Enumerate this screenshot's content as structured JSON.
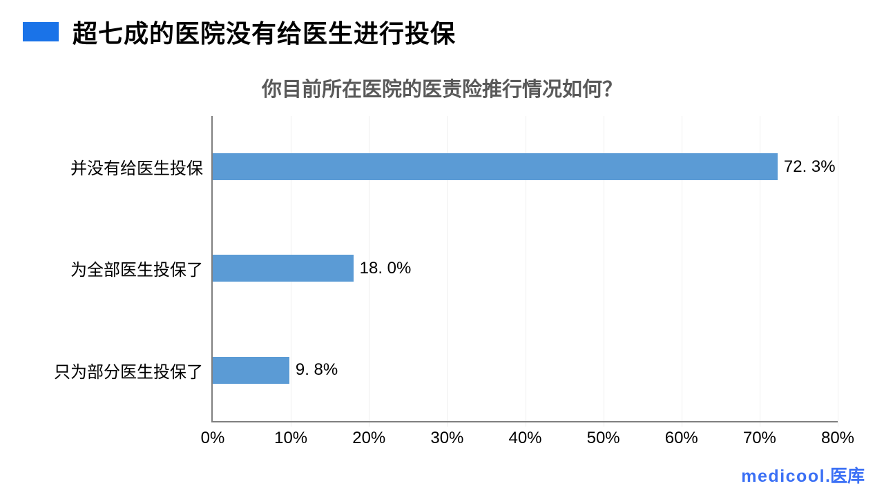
{
  "header": {
    "title": "超七成的医院没有给医生进行投保",
    "accent_color": "#1A73E8"
  },
  "chart_data": {
    "type": "bar",
    "orientation": "horizontal",
    "title": "你目前所在医院的医责险推行情况如何？",
    "categories": [
      "并没有给医生投保",
      "为全部医生投保了",
      "只为部分医生投保了"
    ],
    "values": [
      72.3,
      18.0,
      9.8
    ],
    "value_labels": [
      "72. 3%",
      "18. 0%",
      "9. 8%"
    ],
    "x_tick_labels": [
      "0%",
      "10%",
      "20%",
      "30%",
      "40%",
      "50%",
      "60%",
      "70%",
      "80%"
    ],
    "x_tick_values": [
      0,
      10,
      20,
      30,
      40,
      50,
      60,
      70,
      80
    ],
    "xlim": [
      0,
      80
    ],
    "grid": "vertical-only",
    "legend": "none",
    "bar_color": "#5B9BD5",
    "axis_color": "#7F7F7F",
    "gridline_color": "#EFEFEF",
    "title_color": "#595959"
  },
  "footer": {
    "logo_latin": "medicool",
    "logo_cjk": ".医库",
    "logo_color": "#3B70F5"
  }
}
